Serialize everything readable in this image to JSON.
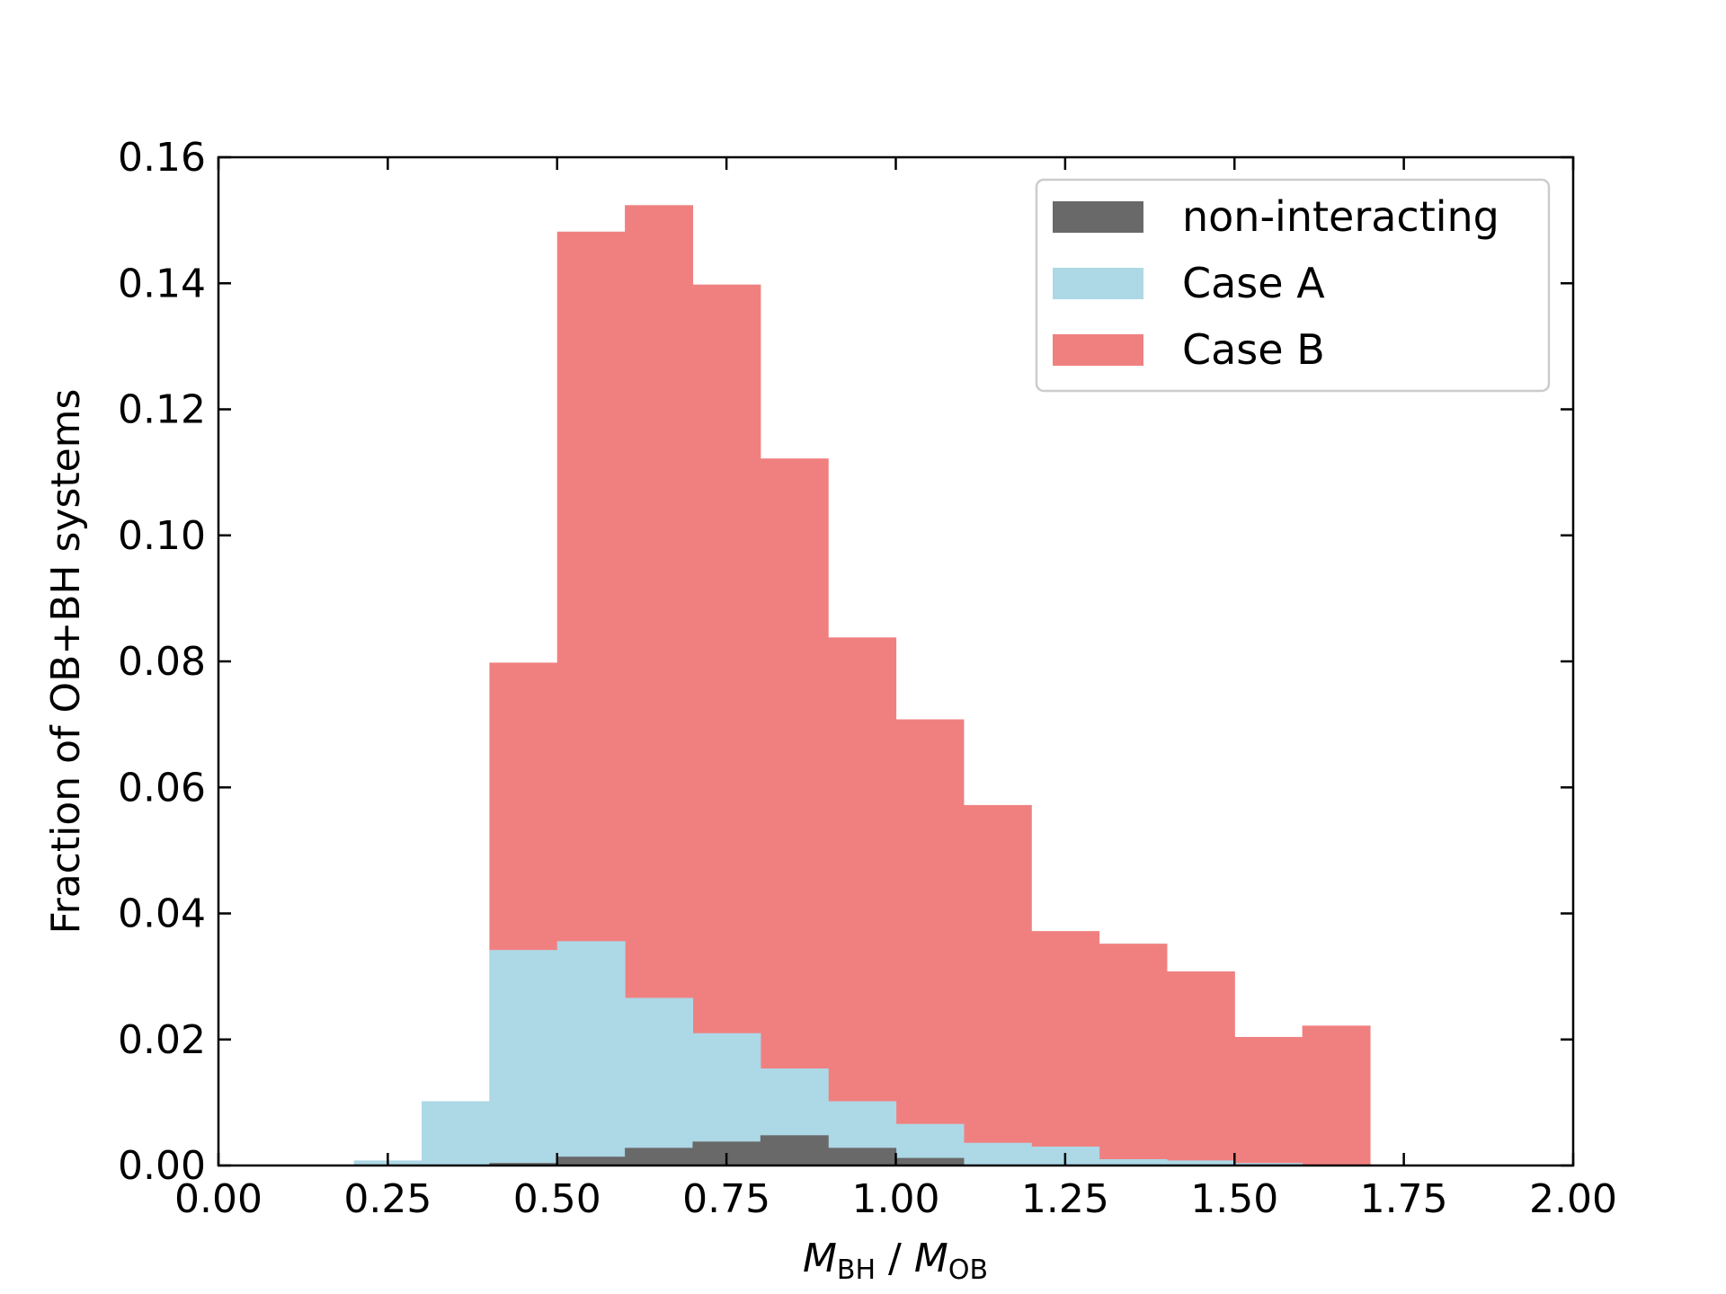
{
  "chart_data": {
    "type": "bar",
    "title": "",
    "xlabel": {
      "main_left": "M",
      "sub_left": "BH",
      "sep": " / ",
      "main_right": "M",
      "sub_right": "OB"
    },
    "ylabel": "Fraction of OB+BH systems",
    "xlim": [
      0.0,
      2.0
    ],
    "ylim": [
      0.0,
      0.16
    ],
    "xticks": [
      "0.00",
      "0.25",
      "0.50",
      "0.75",
      "1.00",
      "1.25",
      "1.50",
      "1.75",
      "2.00"
    ],
    "yticks": [
      "0.00",
      "0.02",
      "0.04",
      "0.06",
      "0.08",
      "0.10",
      "0.12",
      "0.14",
      "0.16"
    ],
    "grid": false,
    "legend_position": "top-right",
    "bin_edges": [
      0.0,
      0.1,
      0.2,
      0.3,
      0.4,
      0.5,
      0.6,
      0.7,
      0.8,
      0.9,
      1.0,
      1.1,
      1.2,
      1.3,
      1.4,
      1.5,
      1.6,
      1.7,
      1.8,
      1.9,
      2.0
    ],
    "series": [
      {
        "name": "Case B",
        "color": "#f08080",
        "values": [
          0,
          0,
          0,
          0,
          0.0798,
          0.1482,
          0.1524,
          0.1398,
          0.1122,
          0.0838,
          0.0708,
          0.0572,
          0.0372,
          0.0352,
          0.0308,
          0.0204,
          0.0222,
          0,
          0,
          0
        ]
      },
      {
        "name": "Case A",
        "color": "#add8e6",
        "values": [
          0,
          0,
          0.0008,
          0.0102,
          0.0342,
          0.0356,
          0.0266,
          0.021,
          0.0154,
          0.0102,
          0.0066,
          0.0036,
          0.003,
          0.001,
          0.0008,
          0.0004,
          0,
          0,
          0,
          0
        ]
      },
      {
        "name": "non-interacting",
        "color": "#696969",
        "values": [
          0,
          0,
          0,
          0,
          0.0004,
          0.0014,
          0.0028,
          0.0038,
          0.0048,
          0.0028,
          0.0012,
          0,
          0,
          0,
          0,
          0,
          0,
          0,
          0,
          0
        ]
      }
    ],
    "legend_order": [
      "non-interacting",
      "Case A",
      "Case B"
    ]
  }
}
